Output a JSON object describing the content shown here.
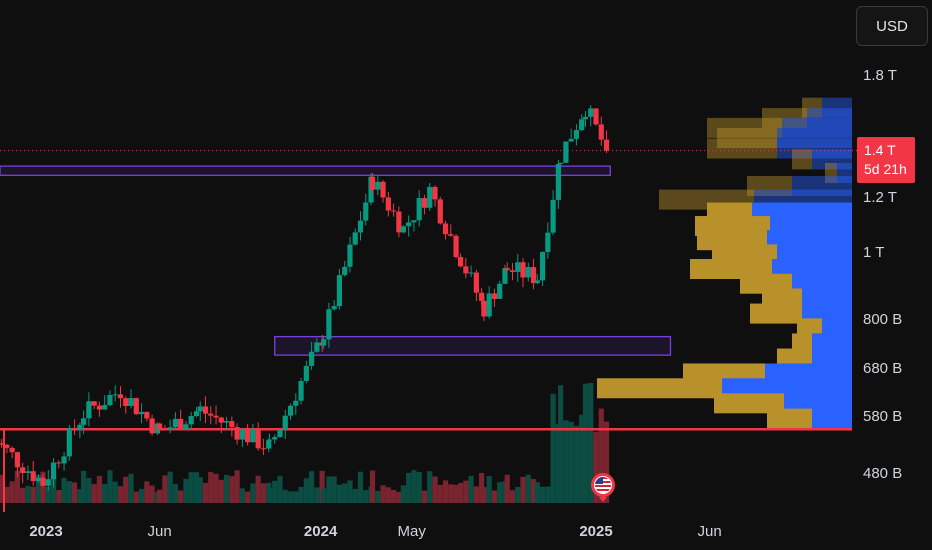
{
  "toolbar": {
    "currency_label": "USD"
  },
  "price_tag": {
    "value": "1.4 T",
    "countdown": "5d 21h"
  },
  "event_flag": {
    "country": "United States"
  },
  "colors": {
    "up": "#089981",
    "down": "#f23645",
    "zone": "#7b3fe4",
    "vp_gold": "#b8912b",
    "vp_blue": "#2962ff",
    "background": "#0f0f0f"
  },
  "chart_data": {
    "type": "candlestick",
    "y_scale": "log",
    "ylim": [
      420000000000,
      2000000000000
    ],
    "ytick_labels": [
      "1.8 T",
      "1.2 T",
      "1 T",
      "800 B",
      "680 B",
      "580 B",
      "480 B"
    ],
    "yticks": [
      1800000000000,
      1200000000000,
      1000000000000,
      800000000000,
      680000000000,
      580000000000,
      480000000000
    ],
    "xtick_labels": [
      "2023",
      "Jun",
      "2024",
      "May",
      "2025",
      "Jun"
    ],
    "xticks": [
      "2023-01-01",
      "2023-06-01",
      "2024-01-01",
      "2024-05-01",
      "2025-01-01",
      "2025-06-01"
    ],
    "xlim": [
      "2022-10-15",
      "2025-09-05"
    ],
    "candle_anchors": [
      {
        "date": "2022-10-20",
        "close": 540000000000
      },
      {
        "date": "2022-12-28",
        "close": 465000000000
      },
      {
        "date": "2023-02-20",
        "close": 585000000000
      },
      {
        "date": "2023-04-10",
        "close": 632000000000
      },
      {
        "date": "2023-06-01",
        "close": 550000000000
      },
      {
        "date": "2023-07-25",
        "close": 592000000000
      },
      {
        "date": "2023-10-25",
        "close": 522000000000
      },
      {
        "date": "2024-01-05",
        "close": 760000000000
      },
      {
        "date": "2024-03-10",
        "close": 1270000000000
      },
      {
        "date": "2024-04-20",
        "close": 1080000000000
      },
      {
        "date": "2024-05-25",
        "close": 1230000000000
      },
      {
        "date": "2024-07-05",
        "close": 980000000000
      },
      {
        "date": "2024-08-05",
        "close": 830000000000
      },
      {
        "date": "2024-09-05",
        "close": 945000000000
      },
      {
        "date": "2024-10-15",
        "close": 920000000000
      },
      {
        "date": "2024-11-15",
        "close": 1380000000000
      },
      {
        "date": "2024-12-18",
        "close": 1620000000000
      },
      {
        "date": "2025-01-15",
        "close": 1400000000000
      }
    ],
    "current_price": 1400000000000,
    "horizontal_line": 555000000000,
    "zones": [
      {
        "start": "2022-10-15",
        "end": "2025-01-20",
        "low": 1290000000000,
        "high": 1330000000000
      },
      {
        "start": "2023-11-01",
        "end": "2025-04-10",
        "low": 710000000000,
        "high": 755000000000
      }
    ],
    "volume_profile": [
      {
        "price": 1615000000000,
        "gold": 20,
        "blue": 30
      },
      {
        "price": 1560000000000,
        "gold": 45,
        "blue": 45
      },
      {
        "price": 1510000000000,
        "gold": 75,
        "blue": 70
      },
      {
        "price": 1460000000000,
        "gold": 60,
        "blue": 75
      },
      {
        "price": 1410000000000,
        "gold": 70,
        "blue": 75
      },
      {
        "price": 1360000000000,
        "gold": 20,
        "blue": 40
      },
      {
        "price": 1300000000000,
        "gold": 12,
        "blue": 15
      },
      {
        "price": 1245000000000,
        "gold": 45,
        "blue": 60
      },
      {
        "price": 1190000000000,
        "gold": 95,
        "blue": 98
      },
      {
        "price": 1140000000000,
        "gold": 45,
        "blue": 100
      },
      {
        "price": 1090000000000,
        "gold": 75,
        "blue": 82
      },
      {
        "price": 1040000000000,
        "gold": 70,
        "blue": 85
      },
      {
        "price": 992000000000,
        "gold": 65,
        "blue": 75
      },
      {
        "price": 945000000000,
        "gold": 82,
        "blue": 80
      },
      {
        "price": 900000000000,
        "gold": 52,
        "blue": 60
      },
      {
        "price": 857000000000,
        "gold": 40,
        "blue": 50
      },
      {
        "price": 815000000000,
        "gold": 52,
        "blue": 50
      },
      {
        "price": 776000000000,
        "gold": 25,
        "blue": 30
      },
      {
        "price": 738000000000,
        "gold": 20,
        "blue": 40
      },
      {
        "price": 702000000000,
        "gold": 35,
        "blue": 40
      },
      {
        "price": 668000000000,
        "gold": 82,
        "blue": 87
      },
      {
        "price": 636000000000,
        "gold": 125,
        "blue": 130
      },
      {
        "price": 605000000000,
        "gold": 70,
        "blue": 68
      },
      {
        "price": 575000000000,
        "gold": 45,
        "blue": 40
      }
    ]
  }
}
